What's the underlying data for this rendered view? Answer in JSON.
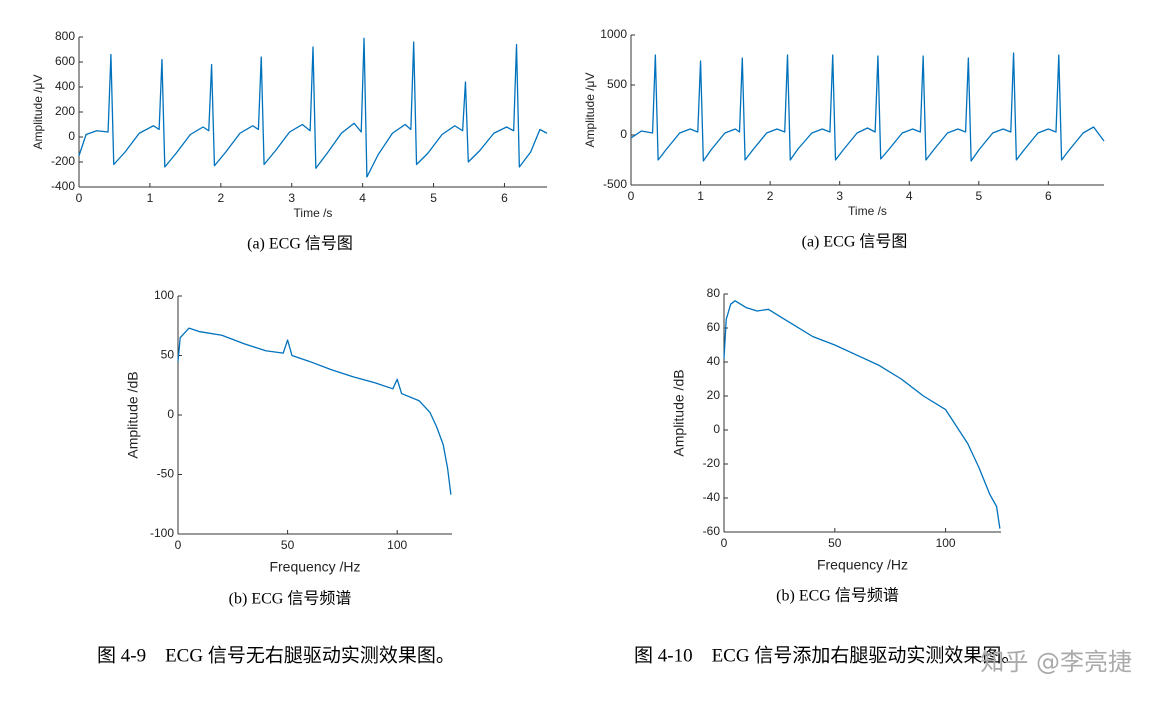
{
  "chart_data": [
    {
      "type": "line",
      "caption": "(a) ECG 信号图",
      "xlabel": "Time /s",
      "ylabel": "Amplitude /μV",
      "color": "#0072bd",
      "xlim": [
        0,
        6.6
      ],
      "ylim": [
        -400,
        800
      ],
      "xticks": [
        0,
        1,
        2,
        3,
        4,
        5,
        6
      ],
      "yticks": [
        -400,
        -200,
        0,
        200,
        400,
        600,
        800
      ],
      "x": [
        0,
        0.1,
        0.25,
        0.41,
        0.45,
        0.49,
        0.65,
        0.85,
        1.05,
        1.13,
        1.17,
        1.21,
        1.37,
        1.57,
        1.75,
        1.83,
        1.87,
        1.91,
        2.07,
        2.27,
        2.45,
        2.53,
        2.57,
        2.61,
        2.77,
        2.97,
        3.15,
        3.26,
        3.3,
        3.34,
        3.5,
        3.7,
        3.88,
        3.98,
        4.02,
        4.06,
        4.22,
        4.42,
        4.6,
        4.68,
        4.72,
        4.76,
        4.92,
        5.12,
        5.3,
        5.41,
        5.45,
        5.49,
        5.65,
        5.85,
        6.03,
        6.13,
        6.17,
        6.21,
        6.37,
        6.5,
        6.6
      ],
      "values": [
        -150,
        20,
        50,
        40,
        660,
        -220,
        -120,
        30,
        90,
        60,
        620,
        -240,
        -130,
        20,
        80,
        50,
        580,
        -230,
        -120,
        30,
        90,
        60,
        640,
        -220,
        -110,
        40,
        100,
        50,
        720,
        -250,
        -130,
        30,
        110,
        40,
        790,
        -320,
        -140,
        30,
        100,
        60,
        760,
        -220,
        -130,
        20,
        90,
        50,
        440,
        -200,
        -110,
        30,
        80,
        50,
        740,
        -240,
        -120,
        60,
        30
      ]
    },
    {
      "type": "line",
      "caption": "(a) ECG 信号图",
      "xlabel": "Time /s",
      "ylabel": "Amplitude /μV",
      "color": "#0072bd",
      "xlim": [
        0,
        6.8
      ],
      "ylim": [
        -500,
        1000
      ],
      "xticks": [
        0,
        1,
        2,
        3,
        4,
        5,
        6
      ],
      "yticks": [
        -500,
        0,
        500,
        1000
      ],
      "x": [
        0,
        0.15,
        0.31,
        0.35,
        0.39,
        0.5,
        0.7,
        0.85,
        0.96,
        1.0,
        1.04,
        1.15,
        1.35,
        1.5,
        1.56,
        1.6,
        1.64,
        1.75,
        1.95,
        2.1,
        2.21,
        2.25,
        2.29,
        2.4,
        2.6,
        2.75,
        2.86,
        2.9,
        2.94,
        3.05,
        3.25,
        3.4,
        3.51,
        3.55,
        3.59,
        3.7,
        3.9,
        4.05,
        4.16,
        4.2,
        4.24,
        4.35,
        4.55,
        4.7,
        4.81,
        4.85,
        4.89,
        5.0,
        5.2,
        5.35,
        5.46,
        5.5,
        5.54,
        5.65,
        5.85,
        6.0,
        6.11,
        6.15,
        6.19,
        6.3,
        6.5,
        6.65,
        6.8
      ],
      "values": [
        -30,
        40,
        20,
        800,
        -250,
        -150,
        20,
        60,
        30,
        740,
        -260,
        -150,
        20,
        60,
        30,
        770,
        -250,
        -150,
        20,
        60,
        30,
        800,
        -250,
        -140,
        20,
        60,
        30,
        800,
        -250,
        -150,
        20,
        70,
        30,
        790,
        -240,
        -150,
        20,
        60,
        30,
        790,
        -250,
        -150,
        20,
        60,
        30,
        770,
        -260,
        -150,
        20,
        60,
        30,
        820,
        -250,
        -150,
        20,
        60,
        30,
        800,
        -250,
        -150,
        20,
        80,
        -60
      ]
    },
    {
      "type": "line",
      "caption": "(b) ECG 信号频谱",
      "xlabel": "Frequency /Hz",
      "ylabel": "Amplitude /dB",
      "color": "#0072bd",
      "xlim": [
        0,
        125
      ],
      "ylim": [
        -100,
        100
      ],
      "xticks": [
        0,
        50,
        100
      ],
      "yticks": [
        -100,
        -50,
        0,
        50,
        100
      ],
      "x": [
        0,
        1,
        5,
        10,
        20,
        30,
        40,
        48,
        50,
        52,
        60,
        70,
        80,
        90,
        98,
        100,
        102,
        110,
        115,
        118,
        121,
        123,
        124.5
      ],
      "values": [
        45,
        65,
        73,
        70,
        67,
        60,
        54,
        52,
        63,
        50,
        45,
        38,
        32,
        27,
        22,
        30,
        18,
        12,
        2,
        -10,
        -25,
        -45,
        -67
      ]
    },
    {
      "type": "line",
      "caption": "(b) ECG 信号频谱",
      "xlabel": "Frequency /Hz",
      "ylabel": "Amplitude /dB",
      "color": "#0072bd",
      "xlim": [
        0,
        125
      ],
      "ylim": [
        -60,
        80
      ],
      "xticks": [
        0,
        50,
        100
      ],
      "yticks": [
        -60,
        -40,
        -20,
        0,
        20,
        40,
        60,
        80
      ],
      "x": [
        0,
        1,
        3,
        5,
        10,
        15,
        20,
        30,
        40,
        50,
        60,
        70,
        80,
        90,
        100,
        105,
        110,
        115,
        120,
        123,
        124.5
      ],
      "values": [
        42,
        65,
        74,
        76,
        72,
        70,
        71,
        63,
        55,
        50,
        44,
        38,
        30,
        20,
        12,
        2,
        -8,
        -22,
        -38,
        -45,
        -58
      ]
    }
  ],
  "figure_captions": [
    "图 4-9    ECG 信号无右腿驱动实测效果图。",
    "图 4-10    ECG 信号添加右腿驱动实测效果图。"
  ],
  "watermark": "知乎 @李亮捷"
}
